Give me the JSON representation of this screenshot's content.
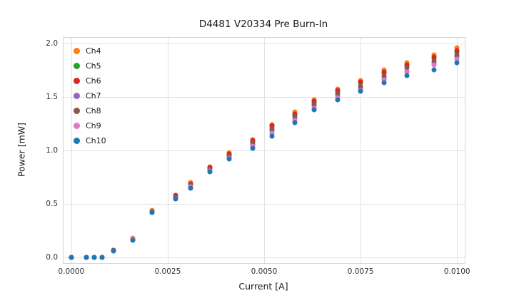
{
  "chart_data": {
    "type": "scatter",
    "title": "D4481 V20334 Pre Burn-In",
    "xlabel": "Current [A]",
    "ylabel": "Power [mW]",
    "xlim": [
      -0.0002,
      0.0102
    ],
    "ylim": [
      -0.05,
      2.05
    ],
    "x_ticks": [
      0.0,
      0.0025,
      0.005,
      0.0075,
      0.01
    ],
    "x_tick_labels": [
      "0.0000",
      "0.0025",
      "0.0050",
      "0.0075",
      "0.0100"
    ],
    "y_ticks": [
      0.0,
      0.5,
      1.0,
      1.5,
      2.0
    ],
    "y_tick_labels": [
      "0.0",
      "0.5",
      "1.0",
      "1.5",
      "2.0"
    ],
    "grid": true,
    "legend_position": "upper-left",
    "x": [
      0.0,
      0.0004,
      0.0006,
      0.0008,
      0.0011,
      0.0016,
      0.0021,
      0.0027,
      0.0031,
      0.0036,
      0.0041,
      0.0047,
      0.0052,
      0.0058,
      0.0063,
      0.0069,
      0.0075,
      0.0081,
      0.0087,
      0.0094,
      0.01
    ],
    "series": [
      {
        "name": "Ch4",
        "color": "#ff7f0e",
        "values": [
          0,
          0,
          0,
          0,
          0.07,
          0.18,
          0.44,
          0.58,
          0.7,
          0.85,
          0.98,
          1.1,
          1.24,
          1.36,
          1.47,
          1.57,
          1.65,
          1.75,
          1.82,
          1.89,
          1.96
        ]
      },
      {
        "name": "Ch5",
        "color": "#2ca02c",
        "values": [
          0,
          0,
          0,
          0,
          0.07,
          0.17,
          0.43,
          0.57,
          0.69,
          0.84,
          0.96,
          1.08,
          1.22,
          1.33,
          1.45,
          1.55,
          1.63,
          1.72,
          1.79,
          1.86,
          1.92
        ]
      },
      {
        "name": "Ch6",
        "color": "#d62728",
        "values": [
          0,
          0,
          0,
          0,
          0.07,
          0.17,
          0.43,
          0.58,
          0.69,
          0.84,
          0.97,
          1.09,
          1.23,
          1.34,
          1.46,
          1.56,
          1.64,
          1.73,
          1.8,
          1.87,
          1.93
        ]
      },
      {
        "name": "Ch7",
        "color": "#9467bd",
        "values": [
          0,
          0,
          0,
          0,
          0.06,
          0.17,
          0.42,
          0.56,
          0.67,
          0.82,
          0.94,
          1.05,
          1.18,
          1.3,
          1.41,
          1.51,
          1.58,
          1.67,
          1.74,
          1.81,
          1.87
        ]
      },
      {
        "name": "Ch8",
        "color": "#8c564b",
        "values": [
          0,
          0,
          0,
          0,
          0.07,
          0.17,
          0.43,
          0.57,
          0.68,
          0.83,
          0.95,
          1.07,
          1.2,
          1.32,
          1.43,
          1.53,
          1.6,
          1.69,
          1.77,
          1.83,
          1.89
        ]
      },
      {
        "name": "Ch9",
        "color": "#e377c2",
        "values": [
          0,
          0,
          0,
          0,
          0.06,
          0.17,
          0.42,
          0.55,
          0.66,
          0.81,
          0.93,
          1.04,
          1.16,
          1.28,
          1.39,
          1.49,
          1.56,
          1.66,
          1.73,
          1.8,
          1.85
        ]
      },
      {
        "name": "Ch10",
        "color": "#1f77b4",
        "values": [
          0,
          0,
          0,
          0,
          0.06,
          0.16,
          0.42,
          0.55,
          0.65,
          0.8,
          0.92,
          1.02,
          1.13,
          1.26,
          1.38,
          1.47,
          1.55,
          1.63,
          1.7,
          1.75,
          1.82
        ]
      }
    ]
  }
}
